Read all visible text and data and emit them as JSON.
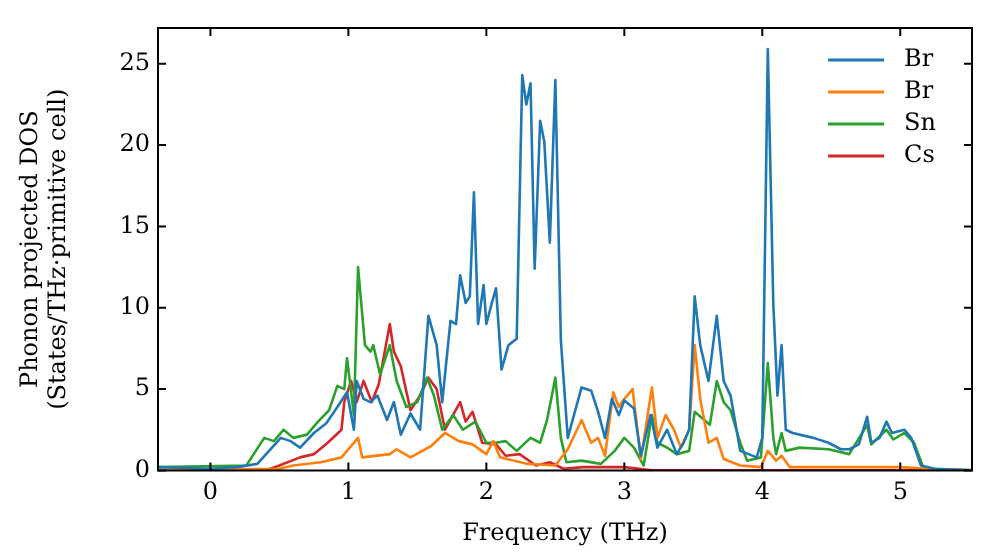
{
  "chart_data": {
    "type": "line",
    "xlabel": "Frequency (THz)",
    "ylabel": "Phonon projected DOS\n(States/THz·primitive cell)",
    "xlim": [
      -0.38,
      5.52
    ],
    "ylim": [
      0,
      27.2
    ],
    "xticks": [
      0,
      1,
      2,
      3,
      4,
      5
    ],
    "yticks": [
      0,
      5,
      10,
      15,
      20,
      25
    ],
    "grid": false,
    "legend": "top right",
    "marker": "none",
    "line_style": "solid",
    "series": [
      {
        "name": "Br",
        "color": "#1f77b4",
        "x": [
          -0.38,
          0,
          0.19,
          0.34,
          0.51,
          0.58,
          0.65,
          0.75,
          0.84,
          0.92,
          0.99,
          1.04,
          1.06,
          1.11,
          1.16,
          1.21,
          1.28,
          1.33,
          1.38,
          1.45,
          1.52,
          1.58,
          1.64,
          1.68,
          1.74,
          1.78,
          1.81,
          1.85,
          1.88,
          1.91,
          1.94,
          1.98,
          2.0,
          2.04,
          2.07,
          2.11,
          2.16,
          2.22,
          2.26,
          2.29,
          2.32,
          2.35,
          2.39,
          2.42,
          2.46,
          2.5,
          2.54,
          2.59,
          2.69,
          2.76,
          2.81,
          2.86,
          2.91,
          2.96,
          3.0,
          3.07,
          3.12,
          3.19,
          3.24,
          3.31,
          3.38,
          3.43,
          3.47,
          3.51,
          3.55,
          3.61,
          3.67,
          3.72,
          3.77,
          3.84,
          3.96,
          4.0,
          4.04,
          4.08,
          4.11,
          4.14,
          4.17,
          4.22,
          4.37,
          4.48,
          4.57,
          4.63,
          4.7,
          4.76,
          4.79,
          4.85,
          4.9,
          4.94,
          5.03,
          5.08,
          5.15,
          5.25,
          5.52
        ],
        "values": [
          0.2,
          0.1,
          0.2,
          0.4,
          2.0,
          1.8,
          1.4,
          2.3,
          2.9,
          3.9,
          4.8,
          2.5,
          5.5,
          4.4,
          4.2,
          4.6,
          3.1,
          4.2,
          2.2,
          3.5,
          2.5,
          9.5,
          7.7,
          4.2,
          9.2,
          9.0,
          12.0,
          10.3,
          10.7,
          17.1,
          9.0,
          11.4,
          9.0,
          10.3,
          11.2,
          6.2,
          7.7,
          8.1,
          24.3,
          22.5,
          23.8,
          12.4,
          21.5,
          20.2,
          14.0,
          24.0,
          8.0,
          2.0,
          5.1,
          4.9,
          3.6,
          2.0,
          4.4,
          3.4,
          4.3,
          3.8,
          0.9,
          3.4,
          1.4,
          2.5,
          1.0,
          1.7,
          2.5,
          10.7,
          7.7,
          5.5,
          9.5,
          5.5,
          4.6,
          1.2,
          0.8,
          2.0,
          25.9,
          10.2,
          4.6,
          7.7,
          2.5,
          2.3,
          2.0,
          1.7,
          1.3,
          1.3,
          1.6,
          3.3,
          1.7,
          2.0,
          3.0,
          2.3,
          2.5,
          2.0,
          0.3,
          0.1,
          0
        ]
      },
      {
        "name": "Br",
        "color": "#ff7f0e",
        "x": [
          -0.38,
          0.5,
          0.6,
          0.8,
          0.95,
          1.07,
          1.1,
          1.3,
          1.35,
          1.45,
          1.6,
          1.7,
          1.8,
          1.9,
          2.0,
          2.05,
          2.1,
          2.3,
          2.5,
          2.59,
          2.69,
          2.76,
          2.81,
          2.86,
          2.92,
          2.96,
          3.0,
          3.06,
          3.12,
          3.2,
          3.24,
          3.3,
          3.36,
          3.41,
          3.47,
          3.51,
          3.55,
          3.61,
          3.67,
          3.72,
          3.84,
          3.99,
          4.04,
          4.1,
          4.14,
          4.2,
          5.0,
          5.2,
          5.52
        ],
        "values": [
          0,
          0.1,
          0.3,
          0.5,
          0.8,
          2.0,
          0.8,
          1.0,
          1.3,
          0.8,
          1.5,
          2.3,
          1.8,
          1.6,
          1.0,
          1.8,
          0.8,
          0.4,
          0.3,
          1.3,
          3.1,
          1.7,
          2.0,
          0.9,
          4.8,
          3.9,
          4.4,
          5.0,
          0.7,
          5.1,
          2.0,
          3.4,
          2.5,
          1.4,
          2.5,
          7.7,
          4.4,
          1.7,
          2.0,
          0.7,
          0.3,
          0.2,
          1.2,
          0.6,
          0.9,
          0.2,
          0.2,
          0.1,
          0
        ]
      },
      {
        "name": "Sn",
        "color": "#2ca02c",
        "x": [
          -0.38,
          0.26,
          0.39,
          0.46,
          0.53,
          0.6,
          0.7,
          0.78,
          0.86,
          0.92,
          0.97,
          0.99,
          1.04,
          1.07,
          1.12,
          1.16,
          1.18,
          1.23,
          1.3,
          1.35,
          1.42,
          1.5,
          1.57,
          1.62,
          1.68,
          1.76,
          1.83,
          1.92,
          2.0,
          2.07,
          2.14,
          2.22,
          2.32,
          2.39,
          2.44,
          2.5,
          2.54,
          2.58,
          2.69,
          2.83,
          2.93,
          3.0,
          3.07,
          3.14,
          3.2,
          3.24,
          3.31,
          3.38,
          3.47,
          3.51,
          3.58,
          3.62,
          3.67,
          3.72,
          3.77,
          3.84,
          3.89,
          3.99,
          4.04,
          4.08,
          4.1,
          4.14,
          4.17,
          4.27,
          4.48,
          4.63,
          4.76,
          4.79,
          4.9,
          4.95,
          5.03,
          5.1,
          5.17,
          5.52
        ],
        "values": [
          0.2,
          0.3,
          2.0,
          1.8,
          2.5,
          2.0,
          2.2,
          3.0,
          3.7,
          5.2,
          5.0,
          6.9,
          3.4,
          12.5,
          7.7,
          7.3,
          7.7,
          5.9,
          7.7,
          5.5,
          3.9,
          4.2,
          5.7,
          4.6,
          2.5,
          3.4,
          2.5,
          3.0,
          1.7,
          1.7,
          1.8,
          1.2,
          2.0,
          1.7,
          3.1,
          5.7,
          2.0,
          0.5,
          0.6,
          0.4,
          1.2,
          2.0,
          1.4,
          0.3,
          3.4,
          1.7,
          1.4,
          1.0,
          1.2,
          3.6,
          3.1,
          2.8,
          5.5,
          4.2,
          3.7,
          1.7,
          0.6,
          0.8,
          6.6,
          2.0,
          1.0,
          2.3,
          1.2,
          1.4,
          1.3,
          1.0,
          2.8,
          1.6,
          2.5,
          1.9,
          2.3,
          1.7,
          0.1,
          0
        ]
      },
      {
        "name": "Cs",
        "color": "#d62728",
        "x": [
          -0.38,
          0.4,
          0.5,
          0.65,
          0.75,
          0.85,
          0.95,
          0.97,
          1.02,
          1.06,
          1.11,
          1.17,
          1.22,
          1.3,
          1.33,
          1.38,
          1.45,
          1.52,
          1.58,
          1.64,
          1.7,
          1.81,
          1.85,
          1.9,
          1.97,
          2.07,
          2.14,
          2.24,
          2.36,
          2.46,
          2.56,
          2.7,
          3.0,
          3.2,
          5.52
        ],
        "values": [
          0,
          0,
          0.3,
          0.8,
          1.0,
          1.7,
          2.5,
          4.2,
          5.5,
          4.2,
          5.5,
          4.2,
          5.3,
          9.0,
          7.3,
          6.4,
          3.7,
          4.6,
          5.7,
          5.0,
          2.5,
          4.2,
          3.0,
          3.6,
          1.7,
          1.6,
          0.9,
          1.0,
          0.3,
          0.5,
          0.1,
          0.2,
          0.2,
          0,
          0
        ]
      }
    ]
  }
}
